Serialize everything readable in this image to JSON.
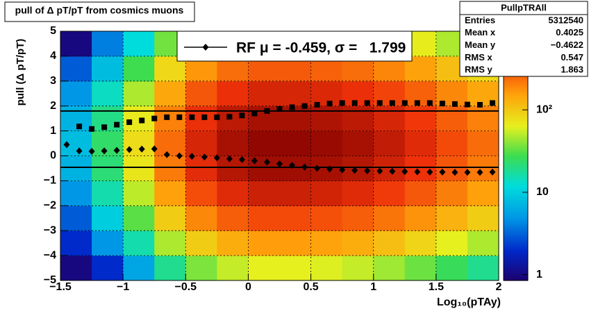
{
  "chart_data": {
    "type": "heatmap",
    "title": "pull of Δ pT/pT from cosmics muons",
    "xlabel": "Log₁₀(pTAy)",
    "ylabel": "pull (Δ pT/pT)",
    "xlim": [
      -1.5,
      2
    ],
    "ylim": [
      -5,
      5
    ],
    "xticks": [
      {
        "value": -1.5,
        "label": "−1.5"
      },
      {
        "value": -1,
        "label": "−1"
      },
      {
        "value": -0.5,
        "label": "−0.5"
      },
      0,
      0.5,
      1,
      1.5,
      2
    ],
    "yticks": [
      {
        "value": -5,
        "label": "−5"
      },
      {
        "value": -4,
        "label": "−4"
      },
      {
        "value": -3,
        "label": "−3"
      },
      {
        "value": -2,
        "label": "−2"
      },
      {
        "value": -1,
        "label": "−1"
      },
      0,
      1,
      2,
      3,
      4,
      5
    ],
    "grid": true,
    "zlim": [
      0.85,
      900
    ],
    "zlog": true,
    "zticks": [
      1,
      10,
      {
        "value": 100,
        "label": "10²"
      }
    ],
    "xbins": [
      -1.5,
      -1.25,
      -1,
      -0.75,
      -0.5,
      -0.25,
      0,
      0.25,
      0.5,
      0.75,
      1,
      1.25,
      1.5,
      1.75,
      2
    ],
    "ybins": [
      -5,
      -4,
      -3,
      -2,
      -1,
      0,
      1,
      2,
      3,
      4,
      5
    ],
    "z": [
      [
        1,
        2,
        6,
        19,
        38,
        54,
        64,
        64,
        61,
        54,
        45,
        35,
        26,
        19
      ],
      [
        2,
        5,
        16,
        48,
        96,
        136,
        160,
        160,
        152,
        136,
        112,
        88,
        64,
        48
      ],
      [
        3,
        10,
        32,
        96,
        192,
        272,
        320,
        320,
        304,
        272,
        224,
        176,
        128,
        96
      ],
      [
        5,
        16,
        52,
        156,
        312,
        442,
        520,
        520,
        494,
        442,
        364,
        286,
        208,
        156
      ],
      [
        7,
        22,
        72,
        216,
        432,
        612,
        720,
        720,
        684,
        612,
        504,
        396,
        288,
        216
      ],
      [
        8,
        24,
        80,
        240,
        480,
        680,
        800,
        800,
        760,
        680,
        560,
        440,
        320,
        240
      ],
      [
        7,
        20,
        68,
        204,
        408,
        578,
        680,
        680,
        646,
        578,
        476,
        374,
        272,
        204
      ],
      [
        5,
        14,
        48,
        144,
        288,
        408,
        480,
        480,
        456,
        408,
        336,
        264,
        192,
        144
      ],
      [
        3,
        8,
        28,
        84,
        168,
        238,
        280,
        280,
        266,
        238,
        196,
        154,
        112,
        84
      ],
      [
        1,
        4,
        12,
        36,
        72,
        102,
        120,
        120,
        114,
        102,
        84,
        66,
        48,
        36
      ]
    ],
    "x": [
      -1.45,
      -1.35,
      -1.25,
      -1.15,
      -1.05,
      -0.95,
      -0.85,
      -0.75,
      -0.65,
      -0.55,
      -0.45,
      -0.35,
      -0.25,
      -0.15,
      -0.05,
      0.05,
      0.15,
      0.25,
      0.35,
      0.45,
      0.55,
      0.65,
      0.75,
      0.85,
      0.95,
      1.05,
      1.15,
      1.25,
      1.35,
      1.45,
      1.55,
      1.65,
      1.75,
      1.85,
      1.95
    ],
    "series": [
      {
        "name": "RF μ = -0.459, σ =   1.799",
        "marker": "diamond",
        "color": "#000000",
        "values": [
          0.45,
          0.2,
          0.18,
          0.2,
          0.22,
          0.25,
          0.27,
          0.28,
          0.05,
          0.0,
          -0.02,
          -0.05,
          -0.08,
          -0.12,
          -0.15,
          -0.2,
          -0.25,
          -0.32,
          -0.38,
          -0.45,
          -0.5,
          -0.53,
          -0.56,
          -0.58,
          -0.6,
          -0.61,
          -0.62,
          -0.63,
          -0.64,
          -0.65,
          -0.65,
          -0.66,
          -0.66,
          -0.66,
          -0.65
        ]
      },
      {
        "marker": "square",
        "color": "#000000",
        "values": [
          null,
          1.18,
          1.08,
          1.15,
          1.25,
          1.35,
          1.42,
          1.5,
          1.55,
          1.55,
          1.55,
          1.55,
          1.55,
          1.57,
          1.62,
          1.7,
          1.8,
          1.88,
          1.95,
          2.0,
          2.05,
          2.1,
          2.12,
          2.12,
          2.12,
          2.12,
          2.12,
          2.12,
          2.12,
          2.12,
          2.1,
          2.08,
          2.06,
          2.05,
          2.12
        ]
      }
    ],
    "hlines": [
      1.799,
      -0.459
    ],
    "stats": {
      "title": "PullpTRAll",
      "rows": [
        [
          "Entries",
          "5312540"
        ],
        [
          "Mean x",
          "0.4025"
        ],
        [
          "Mean y",
          "−0.4622"
        ],
        [
          "RMS x",
          "0.547"
        ],
        [
          "RMS y",
          "1.863"
        ]
      ]
    }
  }
}
